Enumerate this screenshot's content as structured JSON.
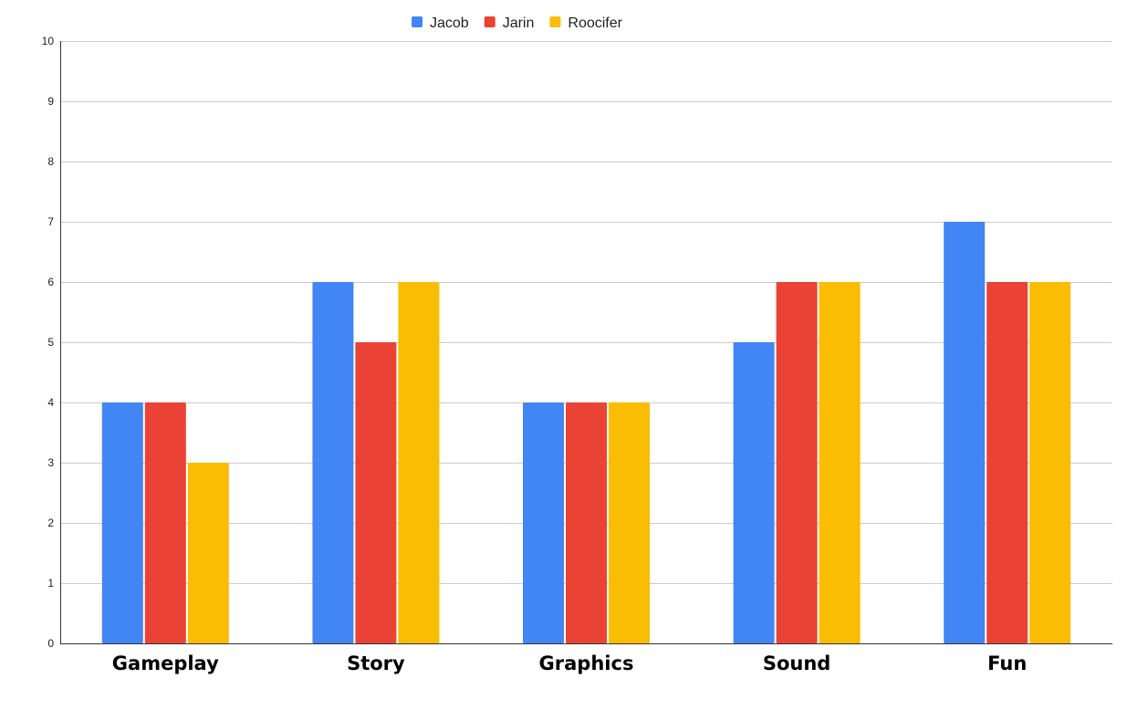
{
  "chart_data": {
    "type": "bar",
    "title": "",
    "xlabel": "",
    "ylabel": "",
    "categories": [
      "Gameplay",
      "Story",
      "Graphics",
      "Sound",
      "Fun"
    ],
    "series": [
      {
        "name": "Jacob",
        "color": "#4285f4",
        "values": [
          4,
          6,
          4,
          5,
          7
        ]
      },
      {
        "name": "Jarin",
        "color": "#ea4335",
        "values": [
          4,
          5,
          4,
          6,
          6
        ]
      },
      {
        "name": "Roocifer",
        "color": "#fbbc04",
        "values": [
          3,
          6,
          4,
          6,
          6
        ]
      }
    ],
    "ylim": [
      0,
      10
    ],
    "yticks": [
      "0",
      "1",
      "2",
      "3",
      "4",
      "5",
      "6",
      "7",
      "8",
      "9",
      "10"
    ],
    "grid": true,
    "legend_position": "top"
  }
}
